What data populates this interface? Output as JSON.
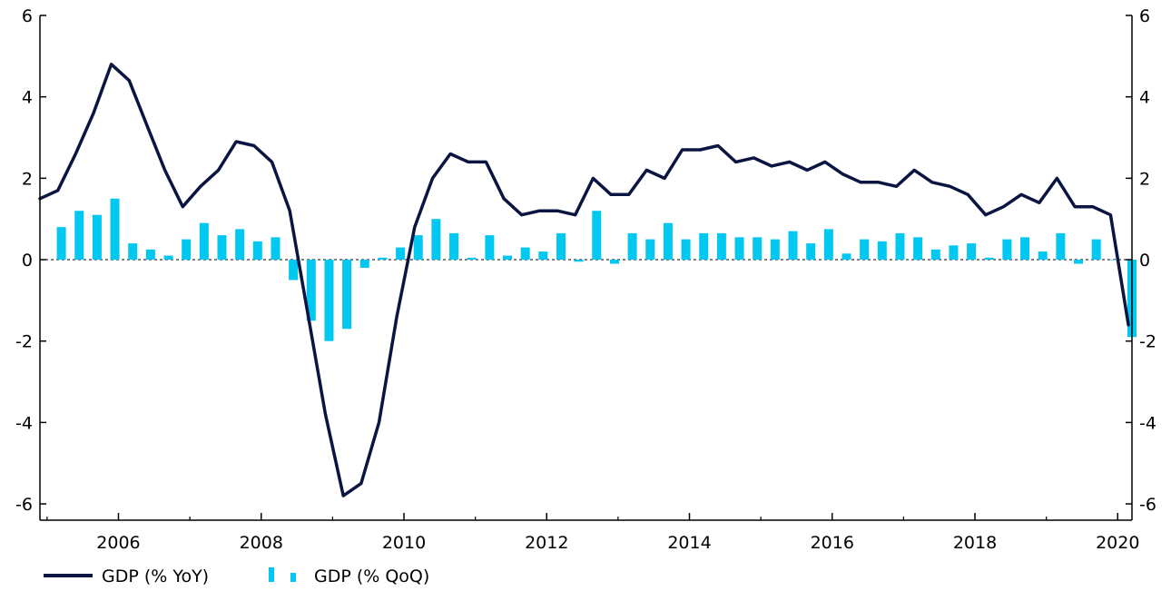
{
  "chart_data": {
    "type": "bar+line",
    "x_tick_labels": [
      "2006",
      "2008",
      "2010",
      "2012",
      "2014",
      "2016",
      "2018",
      "2020"
    ],
    "x_tick_years": [
      2006,
      2008,
      2010,
      2012,
      2014,
      2016,
      2018,
      2020
    ],
    "y_tick_labels": [
      "-6",
      "-4",
      "-2",
      "0",
      "2",
      "4",
      "6"
    ],
    "y_tick_values": [
      -6,
      -4,
      -2,
      0,
      2,
      4,
      6
    ],
    "ylim": [
      -6.4,
      6
    ],
    "xlim": [
      2004.9,
      2020.2
    ],
    "series": [
      {
        "name": "GDP (% YoY)",
        "kind": "line",
        "color": "#0b1542",
        "x": [
          2004.9,
          2005.15,
          2005.4,
          2005.65,
          2005.9,
          2006.15,
          2006.4,
          2006.65,
          2006.9,
          2007.15,
          2007.4,
          2007.65,
          2007.9,
          2008.15,
          2008.4,
          2008.65,
          2008.9,
          2009.15,
          2009.4,
          2009.65,
          2009.9,
          2010.15,
          2010.4,
          2010.65,
          2010.9,
          2011.15,
          2011.4,
          2011.65,
          2011.9,
          2012.15,
          2012.4,
          2012.65,
          2012.9,
          2013.15,
          2013.4,
          2013.65,
          2013.9,
          2014.15,
          2014.4,
          2014.65,
          2014.9,
          2015.15,
          2015.4,
          2015.65,
          2015.9,
          2016.15,
          2016.4,
          2016.65,
          2016.9,
          2017.15,
          2017.4,
          2017.65,
          2017.9,
          2018.15,
          2018.4,
          2018.65,
          2018.9,
          2019.15,
          2019.4,
          2019.65,
          2019.9,
          2020.15
        ],
        "values": [
          1.5,
          1.7,
          2.6,
          3.6,
          4.8,
          4.4,
          3.3,
          2.2,
          1.3,
          1.8,
          2.2,
          2.9,
          2.8,
          2.4,
          1.2,
          -1.3,
          -3.8,
          -5.8,
          -5.5,
          -4.0,
          -1.4,
          0.8,
          2.0,
          2.6,
          2.4,
          2.4,
          1.5,
          1.1,
          1.2,
          1.2,
          1.1,
          2.0,
          1.6,
          1.6,
          2.2,
          2.0,
          2.7,
          2.7,
          2.8,
          2.4,
          2.5,
          2.3,
          2.4,
          2.2,
          2.4,
          2.1,
          1.9,
          1.9,
          1.8,
          2.2,
          1.9,
          1.8,
          1.6,
          1.1,
          1.3,
          1.6,
          1.4,
          2.0,
          1.3,
          1.3,
          1.1,
          -1.6
        ]
      },
      {
        "name": "GDP (% QoQ)",
        "kind": "bar",
        "color": "#00c8f0",
        "x": [
          2005.2,
          2005.45,
          2005.7,
          2005.95,
          2006.2,
          2006.45,
          2006.7,
          2006.95,
          2007.2,
          2007.45,
          2007.7,
          2007.95,
          2008.2,
          2008.45,
          2008.7,
          2008.95,
          2009.2,
          2009.45,
          2009.7,
          2009.95,
          2010.2,
          2010.45,
          2010.7,
          2010.95,
          2011.2,
          2011.45,
          2011.7,
          2011.95,
          2012.2,
          2012.45,
          2012.7,
          2012.95,
          2013.2,
          2013.45,
          2013.7,
          2013.95,
          2014.2,
          2014.45,
          2014.7,
          2014.95,
          2015.2,
          2015.45,
          2015.7,
          2015.95,
          2016.2,
          2016.45,
          2016.7,
          2016.95,
          2017.2,
          2017.45,
          2017.7,
          2017.95,
          2018.2,
          2018.45,
          2018.7,
          2018.95,
          2019.2,
          2019.45,
          2019.7,
          2019.95,
          2020.2
        ],
        "values": [
          0.8,
          1.2,
          1.1,
          1.5,
          0.4,
          0.25,
          0.1,
          0.5,
          0.9,
          0.6,
          0.75,
          0.45,
          0.55,
          -0.5,
          -1.5,
          -2.0,
          -1.7,
          -0.2,
          0.05,
          0.3,
          0.6,
          1.0,
          0.65,
          0.05,
          0.6,
          0.1,
          0.3,
          0.2,
          0.65,
          -0.05,
          1.2,
          -0.1,
          0.65,
          0.5,
          0.9,
          0.5,
          0.65,
          0.65,
          0.55,
          0.55,
          0.5,
          0.7,
          0.4,
          0.75,
          0.15,
          0.5,
          0.45,
          0.65,
          0.55,
          0.25,
          0.35,
          0.4,
          0.05,
          0.5,
          0.55,
          0.2,
          0.65,
          -0.1,
          0.5,
          0.0,
          -1.9
        ]
      }
    ]
  },
  "legend": {
    "line_label": "GDP (% YoY)",
    "bar_label": "GDP (% QoQ)",
    "line_color": "#0b1542",
    "bar_color": "#00c8f0"
  }
}
